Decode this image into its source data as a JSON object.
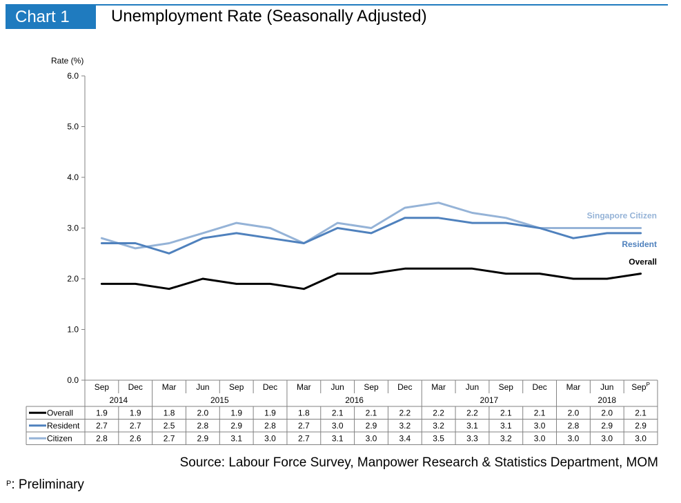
{
  "header": {
    "tag": "Chart 1",
    "title": "Unemployment Rate (Seasonally Adjusted)"
  },
  "footer": {
    "source": "Source: Labour Force Survey, Manpower Research & Statistics Department, MOM",
    "footnote_marker": "P",
    "footnote_text": ": Preliminary"
  },
  "chart_data": {
    "type": "line",
    "ylabel": "Rate (%)",
    "ylim": [
      0,
      6
    ],
    "yticks": [
      "0.0",
      "1.0",
      "2.0",
      "3.0",
      "4.0",
      "5.0",
      "6.0"
    ],
    "grid": false,
    "categories": [
      "Sep",
      "Dec",
      "Mar",
      "Jun",
      "Sep",
      "Dec",
      "Mar",
      "Jun",
      "Sep",
      "Dec",
      "Mar",
      "Jun",
      "Sep",
      "Dec",
      "Mar",
      "Jun",
      "Sep"
    ],
    "preliminary_marker": "P",
    "years": [
      {
        "label": "2014",
        "start": 0,
        "end": 1
      },
      {
        "label": "2015",
        "start": 2,
        "end": 5
      },
      {
        "label": "2016",
        "start": 6,
        "end": 9
      },
      {
        "label": "2017",
        "start": 10,
        "end": 13
      },
      {
        "label": "2018",
        "start": 14,
        "end": 16
      }
    ],
    "series": [
      {
        "name": "Overall",
        "end_label": "Overall",
        "color": "#000000",
        "values": [
          1.9,
          1.9,
          1.8,
          2.0,
          1.9,
          1.9,
          1.8,
          2.1,
          2.1,
          2.2,
          2.2,
          2.2,
          2.1,
          2.1,
          2.0,
          2.0,
          2.1
        ]
      },
      {
        "name": "Resident",
        "end_label": "Resident",
        "color": "#4f81bd",
        "values": [
          2.7,
          2.7,
          2.5,
          2.8,
          2.9,
          2.8,
          2.7,
          3.0,
          2.9,
          3.2,
          3.2,
          3.1,
          3.1,
          3.0,
          2.8,
          2.9,
          2.9
        ]
      },
      {
        "name": "Citizen",
        "end_label": "Singapore Citizen",
        "color": "#95b3d7",
        "values": [
          2.8,
          2.6,
          2.7,
          2.9,
          3.1,
          3.0,
          2.7,
          3.1,
          3.0,
          3.4,
          3.5,
          3.3,
          3.2,
          3.0,
          3.0,
          3.0,
          3.0
        ]
      }
    ]
  }
}
